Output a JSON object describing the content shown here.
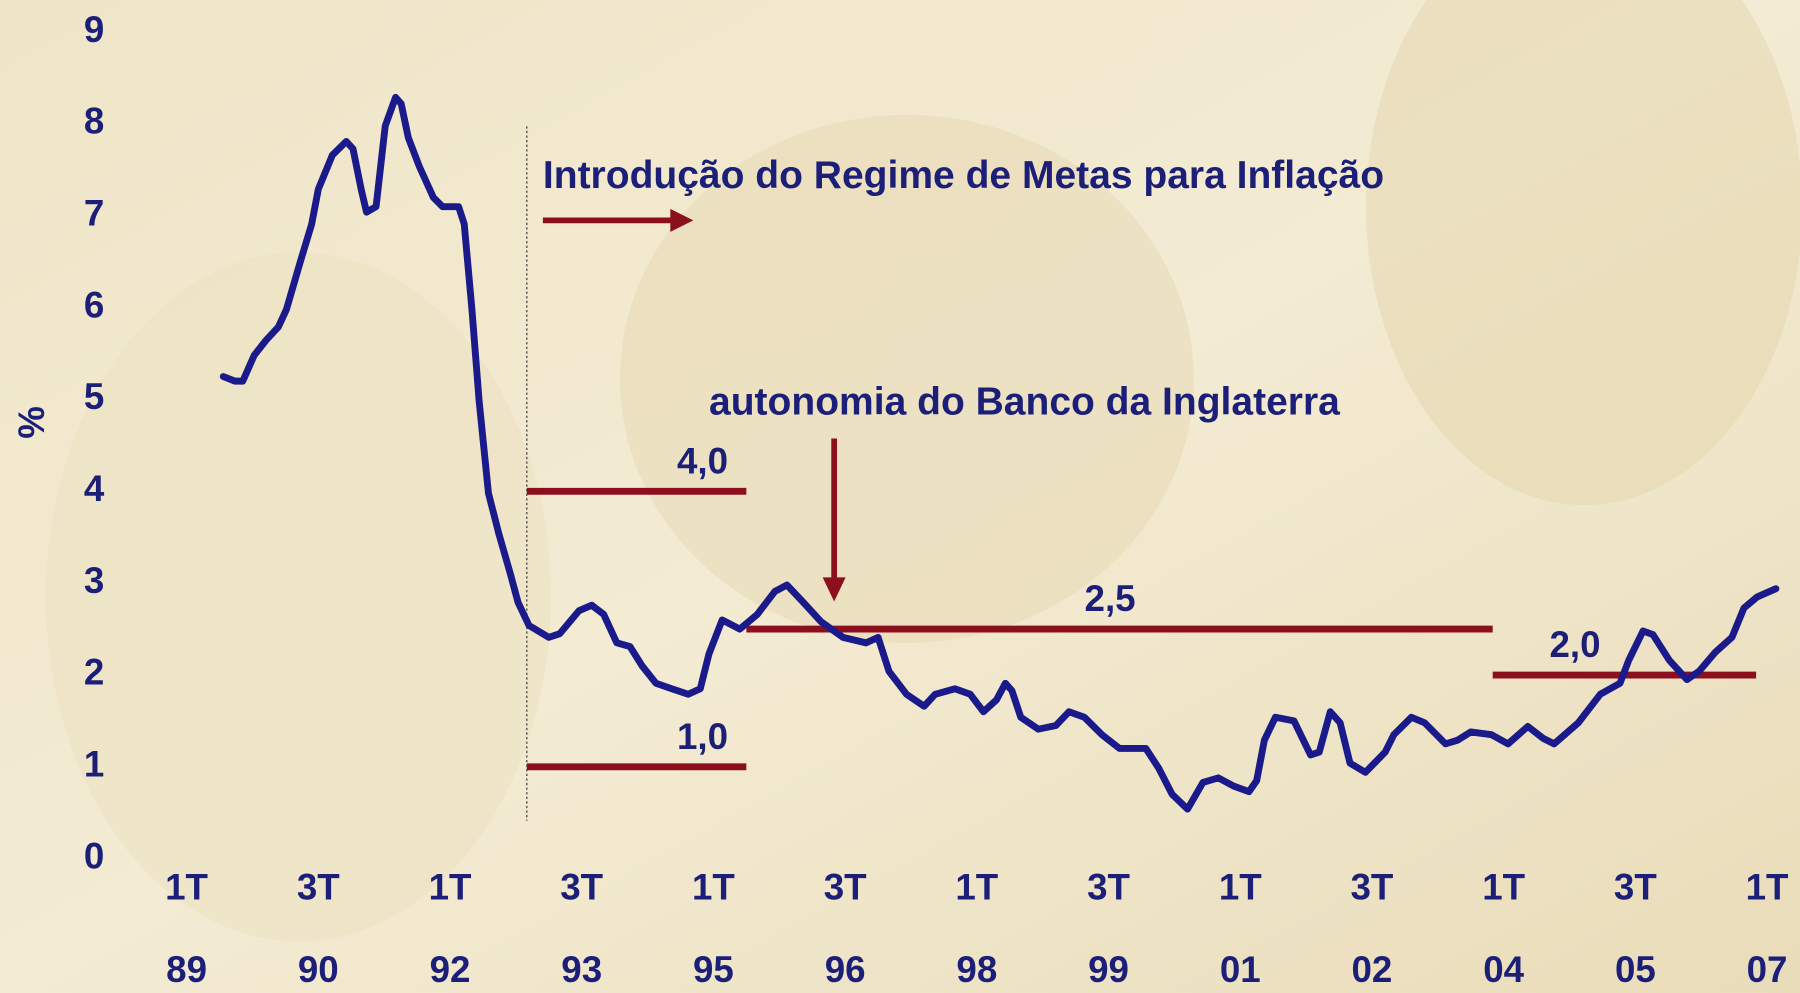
{
  "chart_data": {
    "type": "line",
    "y_label": "%",
    "color": "#1a1a8a",
    "ylim": [
      0,
      9
    ],
    "yticks": [
      0,
      1,
      2,
      3,
      4,
      5,
      6,
      7,
      8,
      9
    ],
    "xlim": [
      -8.5,
      73.5
    ],
    "xticks": [
      {
        "value": 0,
        "label": [
          "1T",
          "89"
        ]
      },
      {
        "value": 6,
        "label": [
          "3T",
          "90"
        ]
      },
      {
        "value": 12,
        "label": [
          "1T",
          "92"
        ]
      },
      {
        "value": 18,
        "label": [
          "3T",
          "93"
        ]
      },
      {
        "value": 24,
        "label": [
          "1T",
          "95"
        ]
      },
      {
        "value": 30,
        "label": [
          "3T",
          "96"
        ]
      },
      {
        "value": 36,
        "label": [
          "1T",
          "98"
        ]
      },
      {
        "value": 42,
        "label": [
          "3T",
          "99"
        ]
      },
      {
        "value": 48,
        "label": [
          "1T",
          "01"
        ]
      },
      {
        "value": 54,
        "label": [
          "3T",
          "02"
        ]
      },
      {
        "value": 60,
        "label": [
          "1T",
          "04"
        ]
      },
      {
        "value": 66,
        "label": [
          "3T",
          "05"
        ]
      },
      {
        "value": 72,
        "label": [
          "1T",
          "07"
        ]
      }
    ],
    "x": [
      1.67,
      2.2,
      2.56,
      3.08,
      3.6,
      4.18,
      4.55,
      5.18,
      5.7,
      6.0,
      6.64,
      7.27,
      7.58,
      7.95,
      8.2,
      8.63,
      9.05,
      9.52,
      9.78,
      10.1,
      10.6,
      11.24,
      11.66,
      12.39,
      12.65,
      13.0,
      13.33,
      13.75,
      14.22,
      14.75,
      15.1,
      15.6,
      16.5,
      17.0,
      17.88,
      18.46,
      19.0,
      19.6,
      20.2,
      20.75,
      21.38,
      22.1,
      22.85,
      23.4,
      23.8,
      24.4,
      25.2,
      26.0,
      26.8,
      27.35,
      28.1,
      28.9,
      29.9,
      30.95,
      31.5,
      32.0,
      32.8,
      33.6,
      34.1,
      35.0,
      35.7,
      36.3,
      36.9,
      37.3,
      37.6,
      38.0,
      38.8,
      39.6,
      40.2,
      40.9,
      41.7,
      42.5,
      43.7,
      44.3,
      44.9,
      45.6,
      46.3,
      47.0,
      47.7,
      48.4,
      48.75,
      49.1,
      49.6,
      50.45,
      51.2,
      51.6,
      52.1,
      52.55,
      53.0,
      53.7,
      54.6,
      55.0,
      55.8,
      56.4,
      57.35,
      57.9,
      58.5,
      59.45,
      60.2,
      61.1,
      61.8,
      62.3,
      63.4,
      64.4,
      65.3,
      65.7,
      66.35,
      66.8,
      67.55,
      68.35,
      68.9,
      69.65,
      70.4,
      70.95,
      71.55,
      72.4
    ],
    "values": [
      5.25,
      5.2,
      5.2,
      5.48,
      5.64,
      5.79,
      5.98,
      6.5,
      6.91,
      7.29,
      7.66,
      7.81,
      7.73,
      7.29,
      7.04,
      7.1,
      7.98,
      8.29,
      8.22,
      7.85,
      7.54,
      7.2,
      7.1,
      7.1,
      6.91,
      5.98,
      4.98,
      3.98,
      3.54,
      3.1,
      2.79,
      2.54,
      2.41,
      2.45,
      2.7,
      2.76,
      2.66,
      2.35,
      2.31,
      2.1,
      1.91,
      1.85,
      1.79,
      1.85,
      2.23,
      2.6,
      2.5,
      2.66,
      2.91,
      2.98,
      2.79,
      2.58,
      2.41,
      2.35,
      2.41,
      2.04,
      1.79,
      1.66,
      1.79,
      1.85,
      1.79,
      1.6,
      1.73,
      1.91,
      1.83,
      1.54,
      1.41,
      1.45,
      1.6,
      1.54,
      1.35,
      1.2,
      1.2,
      0.98,
      0.7,
      0.54,
      0.83,
      0.88,
      0.79,
      0.73,
      0.85,
      1.29,
      1.54,
      1.5,
      1.13,
      1.16,
      1.6,
      1.48,
      1.04,
      0.94,
      1.16,
      1.35,
      1.54,
      1.48,
      1.25,
      1.29,
      1.38,
      1.35,
      1.25,
      1.44,
      1.31,
      1.25,
      1.48,
      1.79,
      1.91,
      2.16,
      2.48,
      2.44,
      2.16,
      1.95,
      2.04,
      2.25,
      2.41,
      2.73,
      2.85,
      2.94
    ],
    "reference_lines": [
      {
        "value": 4,
        "label": "4,0",
        "x_from": 15.5,
        "x_to": 25.5
      },
      {
        "value": 1,
        "label": "1,0",
        "x_from": 15.5,
        "x_to": 25.5
      },
      {
        "value": 2.5,
        "label": "2,5",
        "x_from": 25.5,
        "x_to": 59.5
      },
      {
        "value": 2,
        "label": "2,0",
        "x_from": 59.5,
        "x_to": 71.5
      }
    ],
    "reference_color": "#8b0f1c",
    "events": [
      {
        "label": "Introdução do Regime de Metas para Inflação",
        "x": 15.5
      },
      {
        "label": "autonomia do Banco da Inglaterra",
        "x": 29.5
      }
    ]
  }
}
